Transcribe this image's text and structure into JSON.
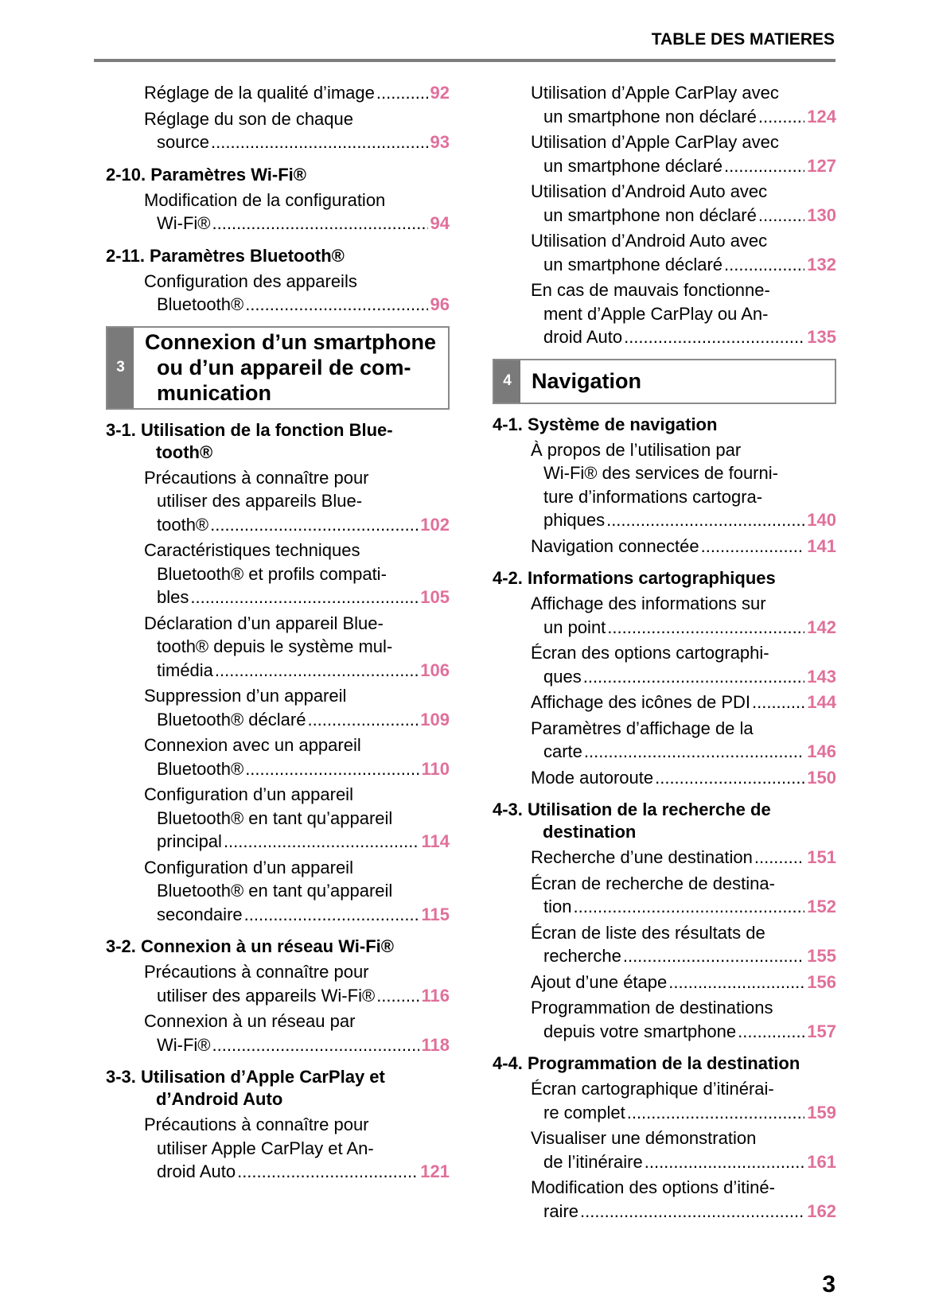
{
  "header": {
    "title": "TABLE DES MATIERES"
  },
  "page_number": "3",
  "colors": {
    "page_link": "#e0709a",
    "chapter_tab": "#7a7a7a"
  },
  "left_column": [
    {
      "type": "sub",
      "lines": [
        "Réglage de la qualité d’image"
      ],
      "page": "92"
    },
    {
      "type": "sub",
      "lines": [
        "Réglage du son de chaque",
        "source"
      ],
      "page": "93"
    },
    {
      "type": "section",
      "lines": [
        "2-10. Paramètres Wi-Fi®"
      ]
    },
    {
      "type": "sub",
      "lines": [
        "Modification de la configuration",
        "Wi-Fi®"
      ],
      "page": "94"
    },
    {
      "type": "section",
      "lines": [
        "2-11. Paramètres Bluetooth®"
      ]
    },
    {
      "type": "sub",
      "lines": [
        "Configuration des appareils",
        "Bluetooth®"
      ],
      "page": "96"
    },
    {
      "type": "chapter",
      "num": "3",
      "lines": [
        "Connexion d’un smartphone",
        "ou d’un appareil de com-",
        "munication"
      ]
    },
    {
      "type": "section",
      "lines": [
        "3-1. Utilisation de la fonction Blue-",
        "tooth®"
      ]
    },
    {
      "type": "sub",
      "lines": [
        "Précautions à connaître pour",
        "utiliser des appareils Blue-",
        "tooth®"
      ],
      "page": "102"
    },
    {
      "type": "sub",
      "lines": [
        "Caractéristiques techniques",
        "Bluetooth® et profils compati-",
        "bles"
      ],
      "page": "105"
    },
    {
      "type": "sub",
      "lines": [
        "Déclaration d’un appareil Blue-",
        "tooth® depuis le système mul-",
        "timédia"
      ],
      "page": "106"
    },
    {
      "type": "sub",
      "lines": [
        "Suppression d’un appareil",
        "Bluetooth® déclaré"
      ],
      "page": "109"
    },
    {
      "type": "sub",
      "lines": [
        "Connexion avec un appareil",
        "Bluetooth®"
      ],
      "page": "110"
    },
    {
      "type": "sub",
      "lines": [
        "Configuration d’un appareil",
        "Bluetooth® en tant qu’appareil",
        "principal"
      ],
      "page": "114"
    },
    {
      "type": "sub",
      "lines": [
        "Configuration d’un appareil",
        "Bluetooth® en tant qu’appareil",
        "secondaire"
      ],
      "page": "115"
    },
    {
      "type": "section",
      "lines": [
        "3-2. Connexion à un réseau Wi-Fi®"
      ]
    },
    {
      "type": "sub",
      "lines": [
        "Précautions à connaître pour",
        "utiliser des appareils Wi-Fi®"
      ],
      "page": "116"
    },
    {
      "type": "sub",
      "lines": [
        "Connexion à un réseau par",
        "Wi-Fi®"
      ],
      "page": "118"
    },
    {
      "type": "section",
      "lines": [
        "3-3. Utilisation d’Apple CarPlay et",
        "d’Android Auto"
      ]
    },
    {
      "type": "sub",
      "lines": [
        "Précautions à connaître pour",
        "utiliser Apple CarPlay et An-",
        "droid Auto"
      ],
      "page": "121"
    }
  ],
  "right_column": [
    {
      "type": "sub",
      "lines": [
        "Utilisation d’Apple CarPlay avec",
        "un smartphone non déclaré"
      ],
      "page": "124"
    },
    {
      "type": "sub",
      "lines": [
        "Utilisation d’Apple CarPlay avec",
        "un smartphone déclaré"
      ],
      "page": "127"
    },
    {
      "type": "sub",
      "lines": [
        "Utilisation d’Android Auto avec",
        "un smartphone non déclaré"
      ],
      "page": "130"
    },
    {
      "type": "sub",
      "lines": [
        "Utilisation d’Android Auto avec",
        "un smartphone déclaré"
      ],
      "page": "132"
    },
    {
      "type": "sub",
      "lines": [
        "En cas de mauvais fonctionne-",
        "ment d’Apple CarPlay ou An-",
        "droid Auto"
      ],
      "page": "135"
    },
    {
      "type": "chapter",
      "num": "4",
      "lines": [
        "Navigation"
      ]
    },
    {
      "type": "section",
      "lines": [
        "4-1. Système de navigation"
      ]
    },
    {
      "type": "sub",
      "lines": [
        "À propos de l’utilisation par",
        "Wi-Fi® des services de fourni-",
        "ture d’informations cartogra-",
        "phiques"
      ],
      "page": "140"
    },
    {
      "type": "sub",
      "lines": [
        "Navigation connectée"
      ],
      "page": "141"
    },
    {
      "type": "section",
      "lines": [
        "4-2. Informations cartographiques"
      ]
    },
    {
      "type": "sub",
      "lines": [
        "Affichage des informations sur",
        "un point"
      ],
      "page": "142"
    },
    {
      "type": "sub",
      "lines": [
        "Écran des options cartographi-",
        "ques"
      ],
      "page": "143"
    },
    {
      "type": "sub",
      "lines": [
        "Affichage des icônes de PDI"
      ],
      "page": "144"
    },
    {
      "type": "sub",
      "lines": [
        "Paramètres d’affichage de la",
        "carte"
      ],
      "page": "146"
    },
    {
      "type": "sub",
      "lines": [
        "Mode autoroute"
      ],
      "page": "150"
    },
    {
      "type": "section",
      "lines": [
        "4-3. Utilisation de la recherche de",
        "destination"
      ]
    },
    {
      "type": "sub",
      "lines": [
        "Recherche d’une destination"
      ],
      "page": "151"
    },
    {
      "type": "sub",
      "lines": [
        "Écran de recherche de destina-",
        "tion"
      ],
      "page": "152"
    },
    {
      "type": "sub",
      "lines": [
        "Écran de liste des résultats de",
        "recherche"
      ],
      "page": "155"
    },
    {
      "type": "sub",
      "lines": [
        "Ajout d’une étape"
      ],
      "page": "156"
    },
    {
      "type": "sub",
      "lines": [
        "Programmation de destinations",
        "depuis votre smartphone"
      ],
      "page": "157"
    },
    {
      "type": "section",
      "lines": [
        "4-4. Programmation de la destination"
      ]
    },
    {
      "type": "sub",
      "lines": [
        "Écran cartographique d’itinérai-",
        "re complet"
      ],
      "page": "159"
    },
    {
      "type": "sub",
      "lines": [
        "Visualiser une démonstration",
        "de l’itinéraire"
      ],
      "page": "161"
    },
    {
      "type": "sub",
      "lines": [
        "Modification des options d’itiné-",
        "raire"
      ],
      "page": "162"
    }
  ]
}
